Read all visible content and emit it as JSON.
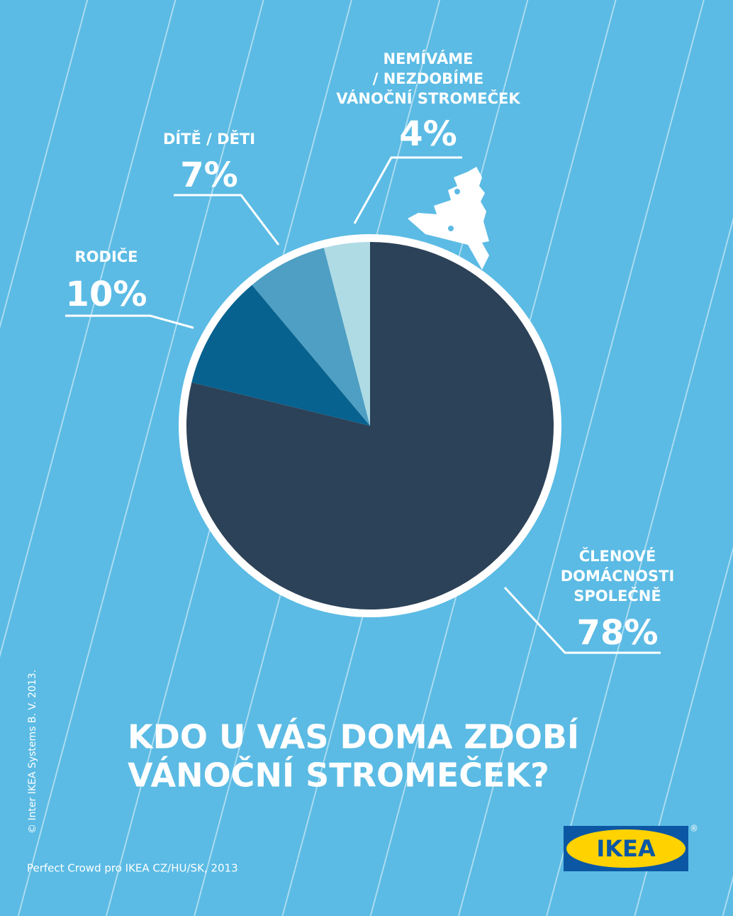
{
  "chart_data": {
    "type": "pie",
    "title": [
      "KDO U VÁS DOMA ZDOBÍ",
      "VÁNOČNÍ STROMEČEK?"
    ],
    "categories": [
      [
        "ČLENOVÉ",
        "DOMÁCNOSTI",
        "SPOLEČNĚ"
      ],
      [
        "RODIČE"
      ],
      [
        "DÍTĚ / DĚTI"
      ],
      [
        "NEMÍVÁME",
        "/ NEZDOBÍME",
        "VÁNOČNÍ STROMEČEK"
      ]
    ],
    "values": [
      78,
      10,
      7,
      4
    ],
    "value_labels": [
      "78%",
      "10%",
      "7%",
      "4%"
    ],
    "colors": [
      "#2c4258",
      "#07628f",
      "#4e9fc3",
      "#afdbe5"
    ],
    "source": "Perfect Crowd pro IKEA CZ/HU/SK, 2013",
    "copyright": "© Inter IKEA Systems B. V. 2013."
  },
  "logo": {
    "text": "IKEA",
    "mark": "®"
  }
}
